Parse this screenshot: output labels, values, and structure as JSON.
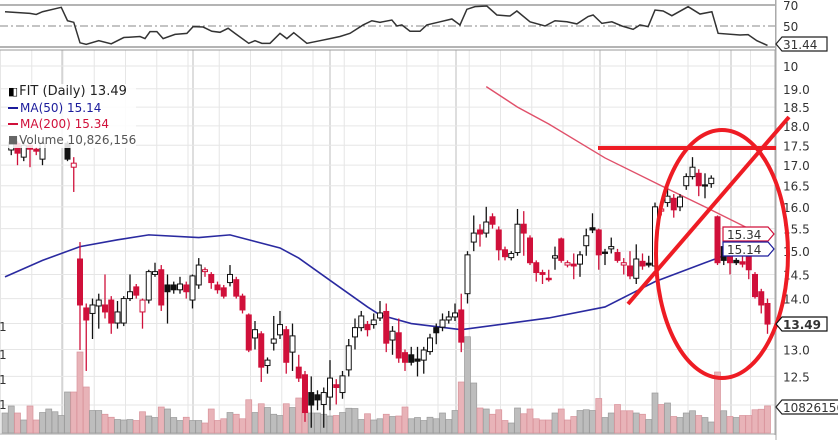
{
  "legend": {
    "main": "FIT (Daily) 13.49",
    "ma50": "MA(50) 15.14",
    "ma200": "MA(200) 15.34",
    "volume": "Volume 10,826,156"
  },
  "colors": {
    "up": "#111111",
    "down": "#d0103a",
    "ma50": "#2a2aa0",
    "ma200": "#e0506a",
    "volume_up": "#bdbdbd",
    "volume_down": "#e8b3b8",
    "annotation": "#ee1c24"
  },
  "tags": {
    "rsi": "31.44",
    "ma200": "15.34",
    "ma50": "15.14",
    "last": "13.49",
    "volume": "10826156"
  },
  "left_axis_labels": [
    "1",
    "1",
    "1",
    "1"
  ],
  "chart_data": {
    "type": "candlestick",
    "ticker": "FIT",
    "period": "Daily",
    "scale": "log",
    "ylim": [
      11.6,
      19.3
    ],
    "price_ticks": [
      "19.0",
      "18.5",
      "18.0",
      "17.5",
      "17.0",
      "16.5",
      "16.0",
      "15.5",
      "15.0",
      "14.5",
      "14.0",
      "13.0",
      "12.5"
    ],
    "price_tick_values": [
      19.0,
      18.5,
      18.0,
      17.5,
      17.0,
      16.5,
      16.0,
      15.5,
      15.0,
      14.5,
      14.0,
      13.0,
      12.5
    ],
    "extra_axis_label": "10",
    "rsi_ticks": [
      "70",
      "50"
    ],
    "rsi_tick_values": [
      70,
      50
    ],
    "ohlc_fields": [
      "open",
      "high",
      "low",
      "close"
    ],
    "candles": [
      null,
      [
        17.38,
        17.6,
        17.25,
        17.58
      ],
      [
        17.55,
        17.6,
        17.0,
        17.3
      ],
      [
        17.2,
        17.6,
        17.1,
        17.5
      ],
      [
        17.5,
        17.55,
        16.95,
        17.4
      ],
      [
        17.4,
        17.45,
        17.25,
        17.35
      ],
      [
        17.15,
        17.6,
        17.0,
        17.55
      ],
      null,
      null,
      null,
      [
        17.55,
        17.6,
        17.1,
        17.15
      ],
      [
        16.95,
        17.2,
        16.35,
        17.05
      ],
      [
        14.83,
        15.2,
        12.99,
        13.87
      ],
      [
        13.81,
        13.9,
        12.6,
        13.57
      ],
      [
        13.7,
        14.0,
        13.2,
        13.87
      ],
      [
        13.85,
        14.1,
        13.4,
        13.97
      ],
      [
        13.87,
        14.5,
        13.6,
        13.73
      ],
      [
        13.97,
        14.05,
        13.3,
        13.51
      ],
      [
        13.51,
        13.95,
        13.4,
        13.73
      ],
      [
        13.51,
        14.05,
        13.45,
        14.0
      ],
      [
        14.0,
        14.5,
        13.95,
        14.14
      ],
      [
        14.24,
        14.3,
        14.0,
        14.07
      ],
      [
        13.73,
        14.0,
        13.4,
        13.97
      ],
      [
        13.97,
        14.6,
        13.9,
        14.56
      ],
      [
        14.5,
        14.75,
        14.45,
        14.56
      ],
      [
        14.6,
        14.7,
        13.75,
        13.87
      ],
      [
        14.28,
        14.5,
        13.5,
        14.14
      ],
      [
        14.28,
        14.35,
        14.1,
        14.18
      ],
      [
        14.18,
        14.45,
        14.1,
        14.3
      ],
      [
        14.28,
        14.35,
        14.0,
        14.14
      ],
      [
        13.97,
        14.5,
        13.8,
        14.47
      ],
      [
        14.28,
        14.85,
        14.2,
        14.7
      ],
      [
        14.56,
        14.65,
        14.45,
        14.6
      ],
      [
        14.5,
        14.55,
        14.2,
        14.33
      ],
      [
        14.28,
        14.35,
        14.1,
        14.18
      ],
      [
        14.22,
        14.28,
        14.0,
        14.05
      ],
      [
        14.33,
        14.7,
        14.25,
        14.5
      ],
      [
        14.39,
        14.45,
        14.0,
        14.05
      ],
      [
        14.05,
        14.1,
        13.7,
        13.77
      ],
      [
        13.67,
        13.7,
        12.95,
        12.99
      ],
      [
        13.22,
        13.55,
        13.0,
        13.38
      ],
      [
        13.3,
        13.35,
        12.4,
        12.67
      ],
      [
        12.7,
        12.85,
        12.55,
        12.8
      ],
      [
        13.12,
        13.65,
        12.98,
        13.2
      ],
      [
        13.28,
        13.75,
        13.2,
        13.48
      ],
      [
        13.38,
        13.45,
        12.55,
        12.76
      ],
      [
        12.95,
        13.5,
        12.6,
        13.26
      ],
      [
        12.67,
        12.9,
        12.4,
        12.47
      ],
      [
        12.53,
        12.6,
        11.7,
        11.86
      ],
      [
        12.21,
        12.5,
        11.6,
        11.99
      ],
      [
        12.17,
        12.25,
        11.9,
        12.08
      ],
      [
        12.0,
        12.3,
        11.6,
        12.21
      ],
      [
        12.13,
        12.8,
        11.9,
        12.47
      ],
      [
        12.35,
        12.45,
        12.0,
        12.3
      ],
      [
        12.21,
        12.6,
        12.1,
        12.51
      ],
      [
        12.62,
        13.2,
        12.5,
        13.07
      ],
      [
        13.24,
        13.6,
        13.0,
        13.42
      ],
      [
        13.42,
        13.75,
        13.35,
        13.65
      ],
      [
        13.48,
        13.55,
        13.25,
        13.38
      ],
      [
        13.48,
        13.7,
        13.4,
        13.57
      ],
      [
        13.61,
        13.95,
        13.55,
        13.71
      ],
      [
        13.74,
        13.9,
        12.95,
        13.12
      ],
      [
        13.18,
        13.45,
        12.9,
        13.35
      ],
      [
        13.32,
        13.6,
        12.75,
        12.84
      ],
      [
        12.94,
        13.0,
        12.6,
        12.76
      ],
      [
        12.9,
        13.05,
        12.7,
        12.76
      ],
      [
        12.82,
        13.05,
        12.5,
        12.78
      ],
      [
        12.8,
        13.05,
        12.55,
        12.99
      ],
      [
        12.96,
        13.3,
        12.9,
        13.22
      ],
      [
        13.42,
        13.5,
        13.1,
        13.32
      ],
      [
        13.43,
        13.7,
        13.35,
        13.57
      ],
      [
        13.57,
        13.75,
        13.5,
        13.63
      ],
      [
        13.63,
        13.9,
        13.55,
        13.71
      ],
      [
        13.77,
        14.1,
        12.95,
        13.14
      ],
      [
        14.1,
        15.0,
        13.9,
        14.92
      ],
      [
        15.2,
        15.8,
        15.0,
        15.4
      ],
      [
        15.47,
        15.6,
        15.1,
        15.38
      ],
      [
        15.4,
        16.0,
        15.3,
        15.65
      ],
      [
        15.77,
        15.85,
        15.5,
        15.6
      ],
      [
        15.47,
        15.55,
        14.8,
        15.03
      ],
      [
        15.03,
        15.1,
        14.8,
        14.88
      ],
      [
        14.86,
        15.0,
        14.8,
        14.95
      ],
      [
        14.97,
        15.95,
        14.9,
        15.6
      ],
      [
        15.6,
        15.9,
        14.9,
        15.4
      ],
      [
        15.29,
        15.35,
        14.7,
        14.75
      ],
      [
        14.75,
        14.8,
        14.35,
        14.54
      ],
      [
        14.54,
        14.6,
        14.3,
        14.5
      ],
      [
        14.42,
        14.6,
        14.35,
        14.39
      ],
      [
        14.85,
        15.1,
        14.6,
        14.9
      ],
      [
        15.27,
        15.3,
        14.75,
        14.8
      ],
      [
        14.7,
        14.8,
        14.65,
        14.75
      ],
      [
        14.72,
        14.95,
        14.4,
        14.68
      ],
      [
        14.72,
        15.0,
        14.45,
        14.92
      ],
      [
        15.12,
        15.5,
        14.9,
        15.34
      ],
      [
        15.52,
        15.85,
        15.4,
        15.47
      ],
      [
        15.47,
        15.5,
        14.6,
        14.92
      ],
      [
        14.98,
        15.05,
        14.7,
        14.95
      ],
      [
        15.05,
        15.3,
        14.95,
        15.1
      ],
      [
        14.97,
        15.05,
        14.75,
        14.8
      ],
      [
        14.7,
        14.85,
        14.5,
        14.75
      ],
      [
        14.68,
        15.0,
        14.4,
        14.47
      ],
      [
        14.42,
        15.15,
        14.3,
        14.83
      ],
      [
        14.78,
        14.95,
        14.6,
        14.68
      ],
      [
        14.74,
        14.9,
        14.65,
        14.7
      ],
      [
        14.68,
        16.1,
        14.6,
        16.0
      ],
      [
        15.9,
        16.05,
        15.8,
        15.95
      ],
      [
        16.1,
        16.5,
        16.0,
        16.25
      ],
      [
        16.2,
        16.3,
        15.75,
        15.93
      ],
      [
        16.0,
        16.3,
        15.9,
        16.23
      ],
      [
        16.5,
        16.8,
        16.4,
        16.72
      ],
      [
        16.72,
        17.2,
        16.65,
        16.95
      ],
      [
        16.8,
        16.9,
        16.25,
        16.5
      ],
      [
        16.52,
        16.8,
        16.2,
        16.5
      ],
      [
        16.55,
        16.75,
        16.45,
        16.68
      ],
      [
        15.77,
        15.8,
        14.7,
        14.75
      ],
      [
        15.1,
        15.2,
        14.7,
        14.8
      ],
      [
        14.97,
        15.0,
        14.5,
        14.75
      ],
      [
        14.8,
        14.85,
        14.7,
        14.75
      ],
      [
        14.77,
        15.0,
        14.65,
        14.72
      ],
      [
        14.92,
        14.95,
        14.4,
        14.6
      ],
      [
        14.5,
        14.55,
        14.0,
        14.04
      ],
      [
        14.14,
        14.2,
        13.7,
        13.87
      ],
      [
        13.9,
        14.0,
        13.3,
        13.49
      ]
    ],
    "volume_millions": [
      8,
      10.8,
      8,
      5.2,
      10.8,
      5.2,
      8.2,
      9.6,
      8.5,
      7,
      16.4,
      16.4,
      32.4,
      18.4,
      9,
      9,
      7.5,
      6.3,
      5.4,
      5.2,
      5.4,
      5,
      8.5,
      6.8,
      6.2,
      10.4,
      9.6,
      6.2,
      5,
      6.3,
      5,
      5,
      4,
      9.6,
      5,
      5.7,
      8.2,
      7.5,
      5.7,
      13.3,
      8.2,
      11.7,
      10.2,
      7.5,
      7,
      11.7,
      10.2,
      14,
      8.9,
      8,
      8,
      7.5,
      6.8,
      7,
      8.2,
      9.9,
      9.8,
      5.4,
      7.7,
      5.2,
      5.7,
      7.5,
      6.6,
      6.8,
      10.4,
      5.7,
      6.2,
      5,
      6.3,
      5.7,
      8,
      5.4,
      9,
      20.4,
      38.5,
      20,
      10,
      9.6,
      7.5,
      9.3,
      5,
      4,
      10,
      7.7,
      9.6,
      5.7,
      5.2,
      5.2,
      8,
      9.6,
      5.2,
      6.6,
      9,
      9.3,
      9,
      13.8,
      6.2,
      8,
      11.4,
      8.9,
      8.9,
      8,
      7.5,
      5.4,
      16,
      11.4,
      12,
      6.6,
      6.2,
      8,
      8.9,
      7,
      6.2,
      4.4,
      24.4,
      8.9,
      6.6,
      6.2,
      7,
      7,
      9.3,
      9.5,
      10.83
    ],
    "ma50": [
      [
        0,
        14.45
      ],
      [
        6,
        14.8
      ],
      [
        12,
        15.1
      ],
      [
        18,
        15.25
      ],
      [
        23,
        15.36
      ],
      [
        31,
        15.3
      ],
      [
        36,
        15.36
      ],
      [
        44,
        15.07
      ],
      [
        47,
        14.85
      ],
      [
        52.5,
        14.33
      ],
      [
        58,
        13.83
      ],
      [
        60,
        13.67
      ],
      [
        65,
        13.5
      ],
      [
        73,
        13.38
      ],
      [
        87,
        13.61
      ],
      [
        96,
        13.83
      ],
      [
        104,
        14.35
      ],
      [
        112,
        14.75
      ],
      [
        119,
        15.1
      ],
      [
        122,
        15.14
      ]
    ],
    "ma200": [
      [
        77,
        19.06
      ],
      [
        82,
        18.5
      ],
      [
        87,
        18.05
      ],
      [
        96,
        17.18
      ],
      [
        105,
        16.5
      ],
      [
        112,
        16.0
      ],
      [
        119,
        15.5
      ],
      [
        122,
        15.34
      ]
    ],
    "rsi": [
      [
        0,
        63.6
      ],
      [
        4,
        62
      ],
      [
        5,
        61
      ],
      [
        6,
        63.6
      ],
      [
        9,
        67.8
      ],
      [
        10,
        55
      ],
      [
        11,
        53.5
      ],
      [
        12,
        34
      ],
      [
        13,
        32.5
      ],
      [
        15,
        36
      ],
      [
        17,
        33
      ],
      [
        19,
        39
      ],
      [
        21.6,
        40
      ],
      [
        22.4,
        38
      ],
      [
        23.2,
        44.6
      ],
      [
        24.3,
        44.6
      ],
      [
        25.3,
        38
      ],
      [
        27.2,
        42
      ],
      [
        29.1,
        43
      ],
      [
        30.1,
        49.4
      ],
      [
        31.7,
        49
      ],
      [
        33.1,
        45
      ],
      [
        34.4,
        44
      ],
      [
        35.7,
        47.8
      ],
      [
        36.8,
        43
      ],
      [
        39,
        33.5
      ],
      [
        40,
        36
      ],
      [
        41.1,
        33.5
      ],
      [
        42.4,
        33.5
      ],
      [
        44,
        43
      ],
      [
        45.1,
        38
      ],
      [
        46.2,
        43.6
      ],
      [
        48.3,
        33.5
      ],
      [
        50.4,
        36
      ],
      [
        52,
        38
      ],
      [
        53.6,
        40
      ],
      [
        55.2,
        43
      ],
      [
        57.3,
        51
      ],
      [
        58.7,
        55
      ],
      [
        60,
        53.5
      ],
      [
        61.9,
        55.7
      ],
      [
        62.7,
        50
      ],
      [
        63.5,
        51
      ],
      [
        64.8,
        45
      ],
      [
        66.4,
        45
      ],
      [
        67.5,
        51
      ],
      [
        69.6,
        54
      ],
      [
        71.5,
        56.7
      ],
      [
        72.8,
        51
      ],
      [
        73.9,
        65.9
      ],
      [
        75.2,
        68.4
      ],
      [
        77.1,
        69
      ],
      [
        78.7,
        60.5
      ],
      [
        80.8,
        59.5
      ],
      [
        81.9,
        64.3
      ],
      [
        84,
        54
      ],
      [
        86.4,
        50
      ],
      [
        88,
        55
      ],
      [
        89.9,
        54
      ],
      [
        91.5,
        52
      ],
      [
        93.3,
        59
      ],
      [
        94.1,
        60.5
      ],
      [
        95.5,
        52.5
      ],
      [
        97.1,
        54
      ],
      [
        98.7,
        50
      ],
      [
        100.5,
        46.8
      ],
      [
        101.6,
        51
      ],
      [
        102.9,
        49.4
      ],
      [
        104,
        65.2
      ],
      [
        105.3,
        64.3
      ],
      [
        106.7,
        59.8
      ],
      [
        109.3,
        68.4
      ],
      [
        111.2,
        61.4
      ],
      [
        113.1,
        63.6
      ],
      [
        114.1,
        43
      ],
      [
        117.6,
        41.4
      ],
      [
        118.9,
        41.8
      ],
      [
        120.3,
        36
      ],
      [
        122,
        31.44
      ]
    ]
  }
}
